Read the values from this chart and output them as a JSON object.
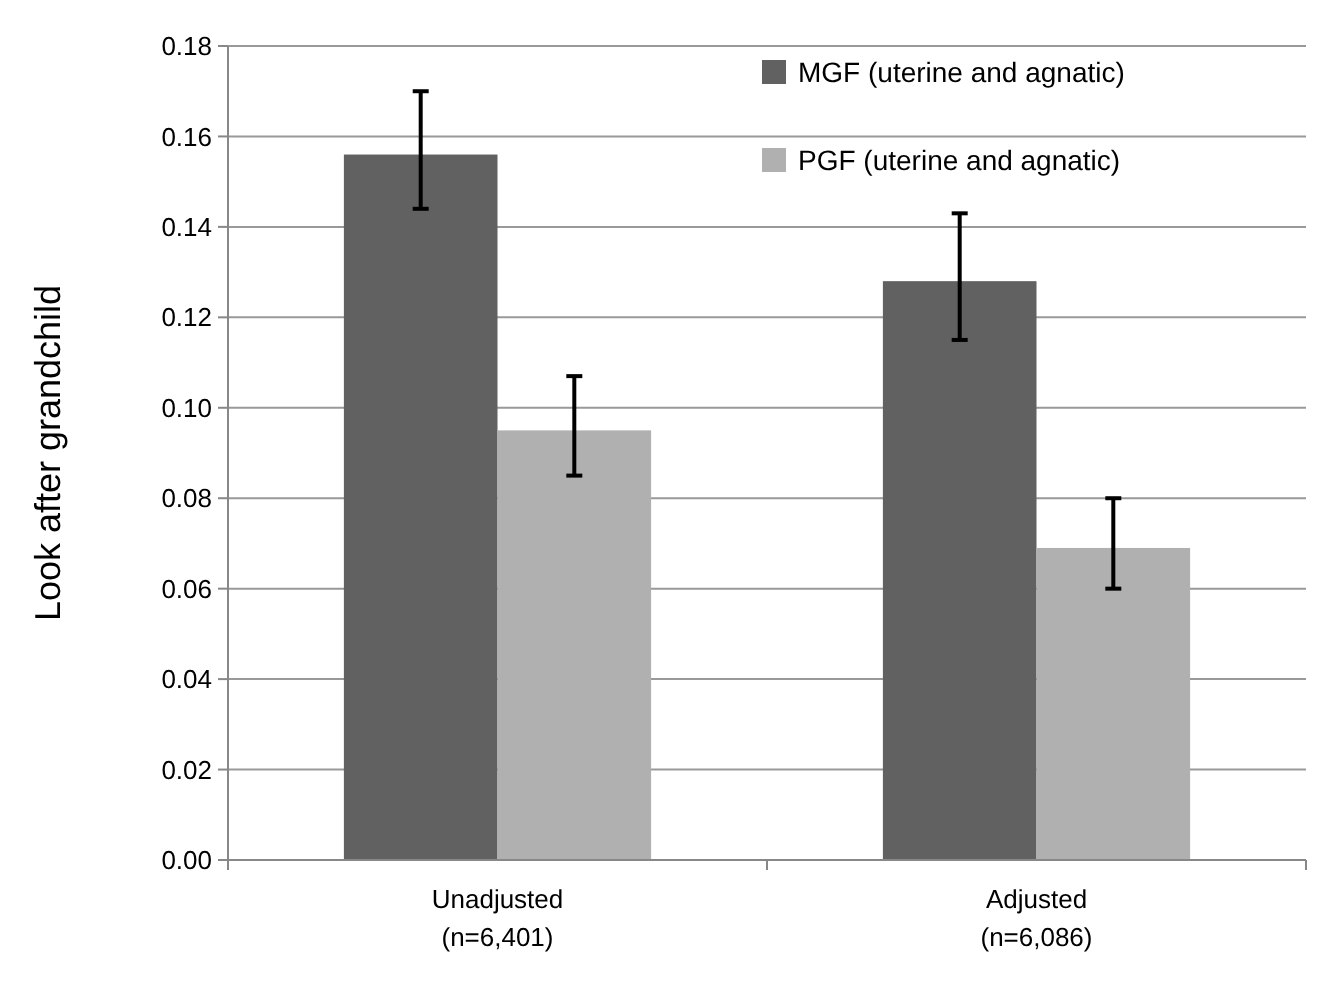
{
  "chart_data": {
    "type": "bar",
    "ylabel": "Look after grandchild",
    "categories": [
      "Unadjusted\n(n=6,401)",
      "Adjusted\n(n=6,086)"
    ],
    "series": [
      {
        "name": "MGF (uterine and agnatic)",
        "color": "#616161",
        "values": [
          0.156,
          0.128
        ],
        "errors": [
          [
            0.144,
            0.17
          ],
          [
            0.115,
            0.143
          ]
        ]
      },
      {
        "name": "PGF (uterine and agnatic)",
        "color": "#b0b0b0",
        "values": [
          0.095,
          0.069
        ],
        "errors": [
          [
            0.085,
            0.107
          ],
          [
            0.06,
            0.08
          ]
        ]
      }
    ],
    "ylim": [
      0,
      0.18
    ],
    "yticks": [
      {
        "value": 0,
        "label": "0.00"
      },
      {
        "value": 0.02,
        "label": "0.02"
      },
      {
        "value": 0.04,
        "label": "0.04"
      },
      {
        "value": 0.06,
        "label": "0.06"
      },
      {
        "value": 0.08,
        "label": "0.08"
      },
      {
        "value": 0.1,
        "label": "0.10"
      },
      {
        "value": 0.12,
        "label": "0.12"
      },
      {
        "value": 0.14,
        "label": "0.14"
      },
      {
        "value": 0.16,
        "label": "0.16"
      },
      {
        "value": 0.18,
        "label": "0.18"
      }
    ],
    "grid": "y",
    "legend": "top right"
  }
}
